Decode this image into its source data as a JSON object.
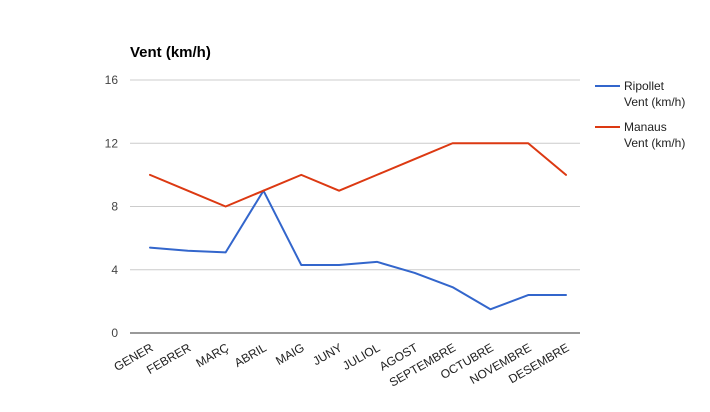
{
  "chart_data": {
    "type": "line",
    "title": "Vent (km/h)",
    "xlabel": "",
    "ylabel": "",
    "categories": [
      "GENER",
      "FEBRER",
      "MARÇ",
      "ABRIL",
      "MAIG",
      "JUNY",
      "JULIOL",
      "AGOST",
      "SEPTEMBRE",
      "OCTUBRE",
      "NOVEMBRE",
      "DESEMBRE"
    ],
    "ylim": [
      0,
      16
    ],
    "yticks": [
      0,
      4,
      8,
      12,
      16
    ],
    "grid": true,
    "legend_position": "right",
    "series": [
      {
        "name": "Ripollet Vent (km/h)",
        "legend_lines": [
          "Ripollet",
          "Vent (km/h)"
        ],
        "color": "#3366cc",
        "values": [
          5.4,
          5.2,
          5.1,
          9.0,
          4.3,
          4.3,
          4.5,
          3.8,
          2.9,
          1.5,
          2.4,
          2.4
        ]
      },
      {
        "name": "Manaus Vent (km/h)",
        "legend_lines": [
          "Manaus",
          "Vent (km/h)"
        ],
        "color": "#dc3912",
        "values": [
          10,
          9,
          8,
          9,
          10,
          9,
          10,
          11,
          12,
          12,
          12,
          10
        ]
      }
    ]
  }
}
